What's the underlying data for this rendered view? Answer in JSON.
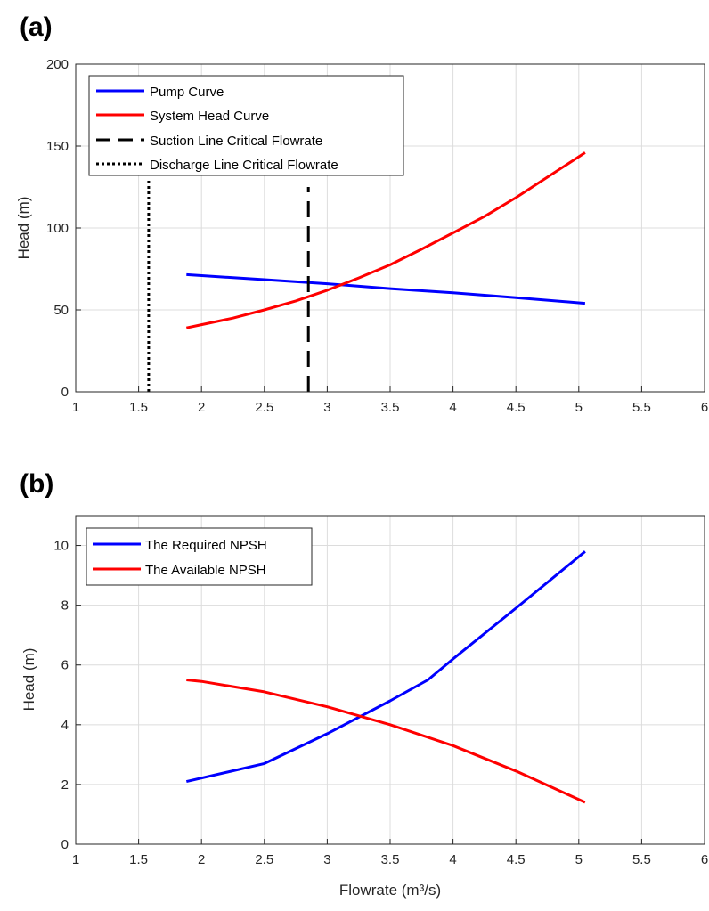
{
  "chart_data": [
    {
      "panel_label": "(a)",
      "type": "line",
      "xlabel": "",
      "ylabel": "Head (m)",
      "xlim": [
        1,
        6
      ],
      "ylim": [
        0,
        200
      ],
      "xticks": [
        "1",
        "1.5",
        "2",
        "2.5",
        "3",
        "3.5",
        "4",
        "4.5",
        "5",
        "5.5",
        "6"
      ],
      "yticks": [
        "0",
        "50",
        "100",
        "150",
        "200"
      ],
      "grid": true,
      "legend_position": "top-left",
      "series": [
        {
          "name": "Pump Curve",
          "color": "#0000ff",
          "style": "solid",
          "x": [
            1.88,
            2.5,
            3.0,
            3.5,
            4.0,
            4.5,
            5.05
          ],
          "y": [
            71.5,
            68.5,
            66.0,
            63.0,
            60.5,
            57.5,
            54.0
          ]
        },
        {
          "name": "System Head Curve",
          "color": "#ff0000",
          "style": "solid",
          "x": [
            1.88,
            2.0,
            2.25,
            2.5,
            2.75,
            3.0,
            3.25,
            3.5,
            3.75,
            4.0,
            4.25,
            4.5,
            4.75,
            5.05
          ],
          "y": [
            39.0,
            41.0,
            45.0,
            50.0,
            55.5,
            62.0,
            69.5,
            77.5,
            87.0,
            97.0,
            107.0,
            118.5,
            131.0,
            146.0
          ]
        },
        {
          "name": "Suction Line Critical Flowrate",
          "color": "#000000",
          "style": "dashed",
          "x": [
            2.85,
            2.85
          ],
          "y": [
            0,
            125
          ]
        },
        {
          "name": "Discharge Line Critical Flowrate",
          "color": "#000000",
          "style": "dotted",
          "x": [
            1.58,
            1.58
          ],
          "y": [
            0,
            130
          ]
        }
      ]
    },
    {
      "panel_label": "(b)",
      "type": "line",
      "xlabel": "Flowrate (m³/s)",
      "ylabel": "Head (m)",
      "xlim": [
        1,
        6
      ],
      "ylim": [
        0,
        11
      ],
      "xticks": [
        "1",
        "1.5",
        "2",
        "2.5",
        "3",
        "3.5",
        "4",
        "4.5",
        "5",
        "5.5",
        "6"
      ],
      "yticks": [
        "0",
        "2",
        "4",
        "6",
        "8",
        "10"
      ],
      "grid": true,
      "legend_position": "top-left",
      "series": [
        {
          "name": "The Required NPSH",
          "color": "#0000ff",
          "style": "solid",
          "x": [
            1.88,
            2.5,
            3.0,
            3.5,
            3.8,
            4.0,
            4.5,
            5.05
          ],
          "y": [
            2.1,
            2.7,
            3.7,
            4.8,
            5.5,
            6.2,
            7.9,
            9.8
          ]
        },
        {
          "name": "The Available NPSH",
          "color": "#ff0000",
          "style": "solid",
          "x": [
            1.88,
            2.0,
            2.5,
            3.0,
            3.5,
            4.0,
            4.5,
            5.05
          ],
          "y": [
            5.5,
            5.45,
            5.1,
            4.6,
            4.0,
            3.3,
            2.45,
            1.4
          ]
        }
      ]
    }
  ]
}
